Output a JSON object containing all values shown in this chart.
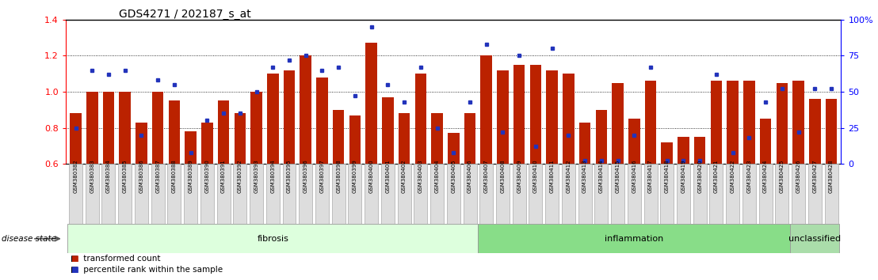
{
  "title": "GDS4271 / 202187_s_at",
  "samples": [
    "GSM380382",
    "GSM380383",
    "GSM380384",
    "GSM380385",
    "GSM380386",
    "GSM380387",
    "GSM380388",
    "GSM380389",
    "GSM380390",
    "GSM380391",
    "GSM380392",
    "GSM380393",
    "GSM380394",
    "GSM380395",
    "GSM380396",
    "GSM380397",
    "GSM380398",
    "GSM380399",
    "GSM380400",
    "GSM380401",
    "GSM380402",
    "GSM380403",
    "GSM380404",
    "GSM380405",
    "GSM380406",
    "GSM380407",
    "GSM380408",
    "GSM380409",
    "GSM380410",
    "GSM380411",
    "GSM380412",
    "GSM380413",
    "GSM380414",
    "GSM380415",
    "GSM380416",
    "GSM380417",
    "GSM380418",
    "GSM380419",
    "GSM380420",
    "GSM380421",
    "GSM380422",
    "GSM380423",
    "GSM380424",
    "GSM380425",
    "GSM380426",
    "GSM380427",
    "GSM380428"
  ],
  "red_values": [
    0.88,
    1.0,
    1.0,
    1.0,
    0.83,
    1.0,
    0.95,
    0.78,
    0.83,
    0.95,
    0.88,
    1.0,
    1.1,
    1.12,
    1.2,
    1.08,
    0.9,
    0.87,
    1.27,
    0.97,
    0.88,
    1.1,
    0.88,
    0.77,
    0.88,
    1.2,
    1.12,
    1.15,
    1.15,
    1.12,
    1.1,
    0.83,
    0.9,
    1.05,
    0.85,
    1.06,
    0.72,
    0.75,
    0.75,
    1.06,
    1.06,
    1.06,
    0.85,
    1.05,
    1.06,
    0.96,
    0.96
  ],
  "blue_pct": [
    25,
    65,
    62,
    65,
    20,
    58,
    55,
    8,
    30,
    35,
    35,
    50,
    67,
    72,
    75,
    65,
    67,
    47,
    95,
    55,
    43,
    67,
    25,
    8,
    43,
    83,
    22,
    75,
    12,
    80,
    20,
    2,
    2,
    2,
    20,
    67,
    2,
    2,
    2,
    62,
    8,
    18,
    43,
    52,
    22,
    52,
    52
  ],
  "groups": [
    {
      "label": "fibrosis",
      "start": 0,
      "end": 24,
      "color": "#ddffdd"
    },
    {
      "label": "inflammation",
      "start": 25,
      "end": 43,
      "color": "#88dd88"
    },
    {
      "label": "unclassified",
      "start": 44,
      "end": 46,
      "color": "#aaddaa"
    }
  ],
  "ylim": [
    0.6,
    1.4
  ],
  "yticks_left": [
    0.6,
    0.8,
    1.0,
    1.2,
    1.4
  ],
  "yticks_right": [
    0,
    25,
    50,
    75,
    100
  ],
  "bar_color": "#bb2200",
  "dot_color": "#2233bb",
  "legend_red": "transformed count",
  "legend_blue": "percentile rank within the sample"
}
